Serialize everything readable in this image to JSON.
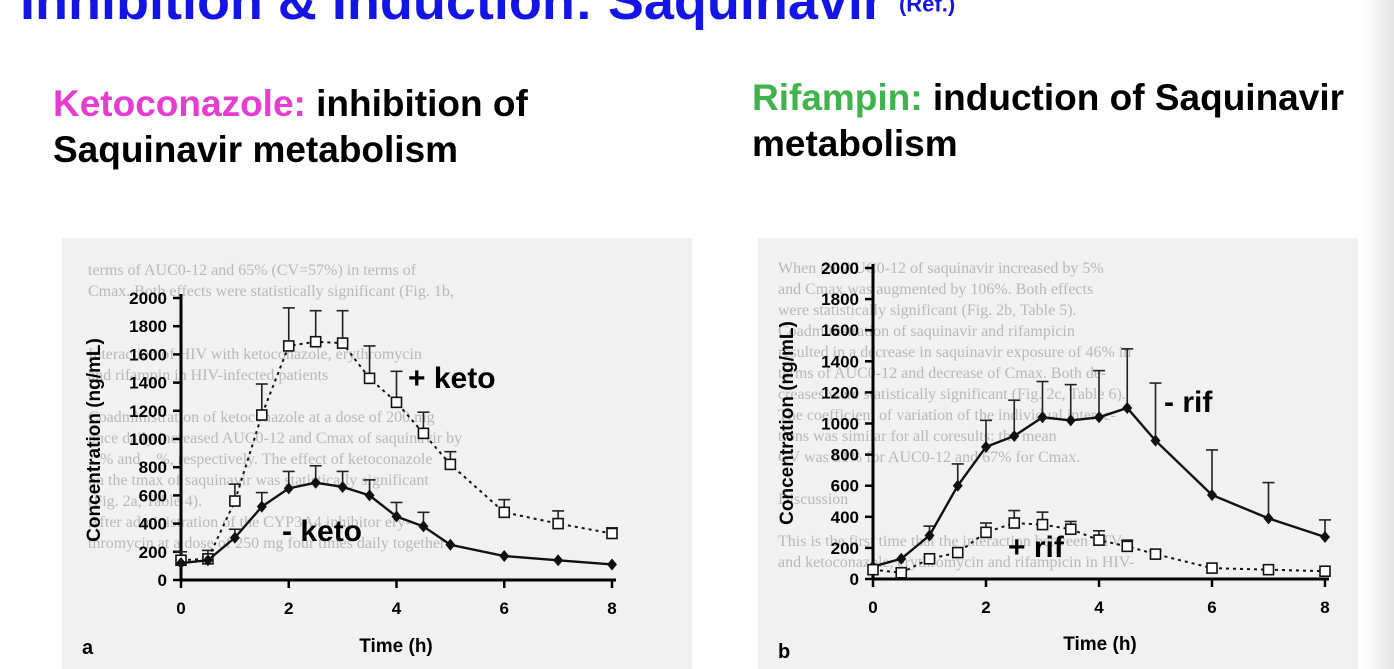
{
  "slide": {
    "title": "Inhibition & Induction: Saquinavir",
    "title_note": "(Ref.)"
  },
  "headings": {
    "left": {
      "highlight": "Ketoconazole:",
      "rest": "inhibition of Saquinavir metabolism",
      "highlight_color": "#e63ccf"
    },
    "right": {
      "highlight": "Rifampin:",
      "rest": "induction of Saquinavir metabolism",
      "highlight_color": "#3fb44c"
    }
  },
  "colors": {
    "title": "#1414e6",
    "figure_background": "#f1f1f1",
    "faded_text": "#b9b9b9"
  },
  "background_text": {
    "left": [
      "terms of AUC0-12 and 65% (CV=57%) in terms of",
      "Cmax. Both effects were statistically significant (Fig. 1b,",
      "",
      "",
      "Interaction of HIV with ketoconazole, erythromycin",
      "and rifampin in HIV-infected patients",
      "",
      "Coadministration of ketoconazole at a dose of 200 mg",
      "once daily increased AUC0-12 and Cmax of saquinavir by",
      "...% and ...%, respectively. The effect of ketoconazole",
      "on the tmax of saquinavir was statistically significant",
      "(Fig. 2a, Table 4).",
      "After administration of the CYP3A4 inhibitor ery-",
      "thromycin at a dose of 250 mg four times daily together"
    ],
    "right": [
      "When the AUC0-12 of saquinavir increased by 5%",
      "and Cmax was augmented by 106%. Both effects",
      "were statistically significant (Fig. 2b, Table 5).",
      "Coadministration of saquinavir and rifampicin",
      "resulted in a decrease in saquinavir exposure of 46% in",
      "terms of AUC0-12 and decrease of Cmax. Both de-",
      "creases were statistically significant (Fig. 2c, Table 6).",
      "The coefficient of variation of the individual interac-",
      "tions was similar for all coresults: the mean",
      "CV was 51% for AUC0-12 and 67% for Cmax.",
      "",
      "Discussion",
      "",
      "This is the first time that the interaction between FTV",
      "and ketoconazole, erythromycin and rifampicin in HIV-"
    ]
  },
  "chart_data": [
    {
      "type": "line",
      "panel_label": "a",
      "xlabel": "Time (h)",
      "ylabel": "Concentration (ng/mL)",
      "xlim": [
        0,
        8
      ],
      "ylim": [
        0,
        2000
      ],
      "xticks": [
        0,
        2,
        4,
        6,
        8
      ],
      "yticks": [
        0,
        200,
        400,
        600,
        800,
        1000,
        1200,
        1400,
        1600,
        1800,
        2000
      ],
      "grid": false,
      "series": [
        {
          "name": "+ keto",
          "style": "dashed",
          "marker": "open-square",
          "x": [
            0,
            0.5,
            1,
            1.5,
            2,
            2.5,
            3,
            3.5,
            4,
            4.5,
            5,
            6,
            7,
            8
          ],
          "y": [
            140,
            150,
            560,
            1170,
            1660,
            1690,
            1680,
            1430,
            1260,
            1040,
            820,
            480,
            400,
            330
          ],
          "error_up": [
            60,
            60,
            120,
            220,
            270,
            220,
            230,
            230,
            220,
            150,
            90,
            90,
            90,
            40
          ]
        },
        {
          "name": "- keto",
          "style": "solid",
          "marker": "filled-diamond",
          "x": [
            0,
            0.5,
            1,
            1.5,
            2,
            2.5,
            3,
            3.5,
            4,
            4.5,
            5,
            6,
            7,
            8
          ],
          "y": [
            120,
            140,
            300,
            520,
            650,
            690,
            660,
            600,
            450,
            380,
            250,
            170,
            140,
            110
          ],
          "error_up": [
            0,
            0,
            60,
            100,
            120,
            120,
            110,
            110,
            100,
            100,
            0,
            0,
            0,
            0
          ]
        }
      ]
    },
    {
      "type": "line",
      "panel_label": "b",
      "xlabel": "Time (h)",
      "ylabel": "Concentration (ng/mL)",
      "xlim": [
        0,
        8
      ],
      "ylim": [
        0,
        2000
      ],
      "xticks": [
        0,
        2,
        4,
        6,
        8
      ],
      "yticks": [
        0,
        200,
        400,
        600,
        800,
        1000,
        1200,
        1400,
        1600,
        1800,
        2000
      ],
      "grid": false,
      "series": [
        {
          "name": "- rif",
          "style": "solid",
          "marker": "filled-diamond",
          "x": [
            0,
            0.5,
            1,
            1.5,
            2,
            2.5,
            3,
            3.5,
            4,
            4.5,
            5,
            6,
            7,
            8
          ],
          "y": [
            80,
            130,
            280,
            600,
            850,
            920,
            1040,
            1020,
            1040,
            1100,
            890,
            540,
            390,
            270
          ],
          "error_up": [
            0,
            0,
            60,
            140,
            170,
            230,
            230,
            230,
            300,
            380,
            370,
            290,
            230,
            110
          ]
        },
        {
          "name": "+ rif",
          "style": "dashed",
          "marker": "open-square",
          "x": [
            0,
            0.5,
            1,
            1.5,
            2,
            2.5,
            3,
            3.5,
            4,
            4.5,
            5,
            6,
            7,
            8
          ],
          "y": [
            60,
            40,
            130,
            170,
            300,
            360,
            350,
            320,
            250,
            210,
            160,
            70,
            60,
            50
          ],
          "error_up": [
            0,
            0,
            0,
            0,
            60,
            80,
            80,
            50,
            60,
            40,
            20,
            0,
            0,
            0
          ]
        }
      ]
    }
  ]
}
